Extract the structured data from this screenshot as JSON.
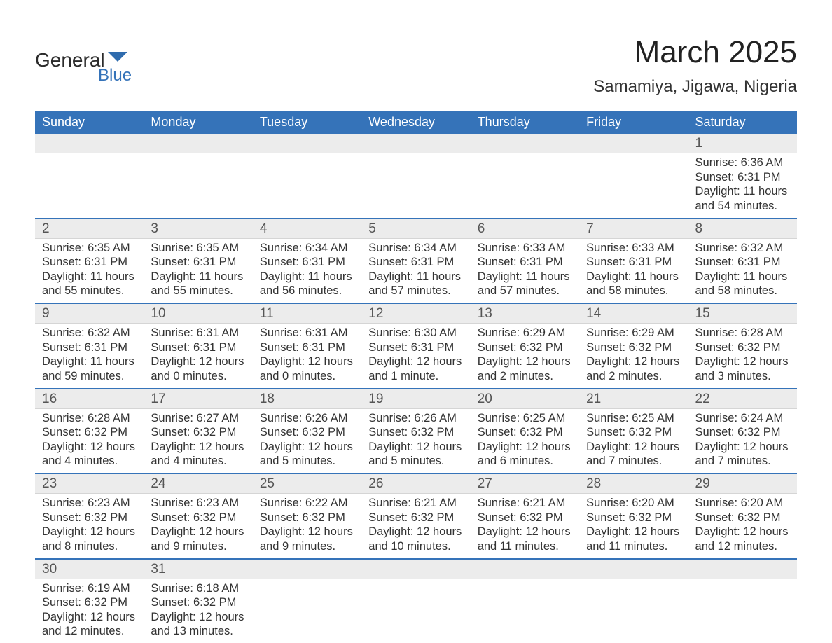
{
  "brand": {
    "line1": "General",
    "line2": "Blue",
    "flag_color": "#2f6cae"
  },
  "header": {
    "month_title": "March 2025",
    "location": "Samamiya, Jigawa, Nigeria"
  },
  "colors": {
    "header_bg": "#3573b9",
    "header_fg": "#ffffff",
    "row_divider": "#3573b9",
    "daynum_bg": "#ececec",
    "text": "#333333"
  },
  "typography": {
    "title_fontsize": 44,
    "location_fontsize": 24,
    "dayheader_fontsize": 18,
    "body_fontsize": 16.5
  },
  "calendar": {
    "type": "table",
    "day_headers": [
      "Sunday",
      "Monday",
      "Tuesday",
      "Wednesday",
      "Thursday",
      "Friday",
      "Saturday"
    ],
    "weeks": [
      [
        null,
        null,
        null,
        null,
        null,
        null,
        {
          "n": "1",
          "sunrise": "Sunrise: 6:36 AM",
          "sunset": "Sunset: 6:31 PM",
          "daylight": "Daylight: 11 hours and 54 minutes."
        }
      ],
      [
        {
          "n": "2",
          "sunrise": "Sunrise: 6:35 AM",
          "sunset": "Sunset: 6:31 PM",
          "daylight": "Daylight: 11 hours and 55 minutes."
        },
        {
          "n": "3",
          "sunrise": "Sunrise: 6:35 AM",
          "sunset": "Sunset: 6:31 PM",
          "daylight": "Daylight: 11 hours and 55 minutes."
        },
        {
          "n": "4",
          "sunrise": "Sunrise: 6:34 AM",
          "sunset": "Sunset: 6:31 PM",
          "daylight": "Daylight: 11 hours and 56 minutes."
        },
        {
          "n": "5",
          "sunrise": "Sunrise: 6:34 AM",
          "sunset": "Sunset: 6:31 PM",
          "daylight": "Daylight: 11 hours and 57 minutes."
        },
        {
          "n": "6",
          "sunrise": "Sunrise: 6:33 AM",
          "sunset": "Sunset: 6:31 PM",
          "daylight": "Daylight: 11 hours and 57 minutes."
        },
        {
          "n": "7",
          "sunrise": "Sunrise: 6:33 AM",
          "sunset": "Sunset: 6:31 PM",
          "daylight": "Daylight: 11 hours and 58 minutes."
        },
        {
          "n": "8",
          "sunrise": "Sunrise: 6:32 AM",
          "sunset": "Sunset: 6:31 PM",
          "daylight": "Daylight: 11 hours and 58 minutes."
        }
      ],
      [
        {
          "n": "9",
          "sunrise": "Sunrise: 6:32 AM",
          "sunset": "Sunset: 6:31 PM",
          "daylight": "Daylight: 11 hours and 59 minutes."
        },
        {
          "n": "10",
          "sunrise": "Sunrise: 6:31 AM",
          "sunset": "Sunset: 6:31 PM",
          "daylight": "Daylight: 12 hours and 0 minutes."
        },
        {
          "n": "11",
          "sunrise": "Sunrise: 6:31 AM",
          "sunset": "Sunset: 6:31 PM",
          "daylight": "Daylight: 12 hours and 0 minutes."
        },
        {
          "n": "12",
          "sunrise": "Sunrise: 6:30 AM",
          "sunset": "Sunset: 6:31 PM",
          "daylight": "Daylight: 12 hours and 1 minute."
        },
        {
          "n": "13",
          "sunrise": "Sunrise: 6:29 AM",
          "sunset": "Sunset: 6:32 PM",
          "daylight": "Daylight: 12 hours and 2 minutes."
        },
        {
          "n": "14",
          "sunrise": "Sunrise: 6:29 AM",
          "sunset": "Sunset: 6:32 PM",
          "daylight": "Daylight: 12 hours and 2 minutes."
        },
        {
          "n": "15",
          "sunrise": "Sunrise: 6:28 AM",
          "sunset": "Sunset: 6:32 PM",
          "daylight": "Daylight: 12 hours and 3 minutes."
        }
      ],
      [
        {
          "n": "16",
          "sunrise": "Sunrise: 6:28 AM",
          "sunset": "Sunset: 6:32 PM",
          "daylight": "Daylight: 12 hours and 4 minutes."
        },
        {
          "n": "17",
          "sunrise": "Sunrise: 6:27 AM",
          "sunset": "Sunset: 6:32 PM",
          "daylight": "Daylight: 12 hours and 4 minutes."
        },
        {
          "n": "18",
          "sunrise": "Sunrise: 6:26 AM",
          "sunset": "Sunset: 6:32 PM",
          "daylight": "Daylight: 12 hours and 5 minutes."
        },
        {
          "n": "19",
          "sunrise": "Sunrise: 6:26 AM",
          "sunset": "Sunset: 6:32 PM",
          "daylight": "Daylight: 12 hours and 5 minutes."
        },
        {
          "n": "20",
          "sunrise": "Sunrise: 6:25 AM",
          "sunset": "Sunset: 6:32 PM",
          "daylight": "Daylight: 12 hours and 6 minutes."
        },
        {
          "n": "21",
          "sunrise": "Sunrise: 6:25 AM",
          "sunset": "Sunset: 6:32 PM",
          "daylight": "Daylight: 12 hours and 7 minutes."
        },
        {
          "n": "22",
          "sunrise": "Sunrise: 6:24 AM",
          "sunset": "Sunset: 6:32 PM",
          "daylight": "Daylight: 12 hours and 7 minutes."
        }
      ],
      [
        {
          "n": "23",
          "sunrise": "Sunrise: 6:23 AM",
          "sunset": "Sunset: 6:32 PM",
          "daylight": "Daylight: 12 hours and 8 minutes."
        },
        {
          "n": "24",
          "sunrise": "Sunrise: 6:23 AM",
          "sunset": "Sunset: 6:32 PM",
          "daylight": "Daylight: 12 hours and 9 minutes."
        },
        {
          "n": "25",
          "sunrise": "Sunrise: 6:22 AM",
          "sunset": "Sunset: 6:32 PM",
          "daylight": "Daylight: 12 hours and 9 minutes."
        },
        {
          "n": "26",
          "sunrise": "Sunrise: 6:21 AM",
          "sunset": "Sunset: 6:32 PM",
          "daylight": "Daylight: 12 hours and 10 minutes."
        },
        {
          "n": "27",
          "sunrise": "Sunrise: 6:21 AM",
          "sunset": "Sunset: 6:32 PM",
          "daylight": "Daylight: 12 hours and 11 minutes."
        },
        {
          "n": "28",
          "sunrise": "Sunrise: 6:20 AM",
          "sunset": "Sunset: 6:32 PM",
          "daylight": "Daylight: 12 hours and 11 minutes."
        },
        {
          "n": "29",
          "sunrise": "Sunrise: 6:20 AM",
          "sunset": "Sunset: 6:32 PM",
          "daylight": "Daylight: 12 hours and 12 minutes."
        }
      ],
      [
        {
          "n": "30",
          "sunrise": "Sunrise: 6:19 AM",
          "sunset": "Sunset: 6:32 PM",
          "daylight": "Daylight: 12 hours and 12 minutes."
        },
        {
          "n": "31",
          "sunrise": "Sunrise: 6:18 AM",
          "sunset": "Sunset: 6:32 PM",
          "daylight": "Daylight: 12 hours and 13 minutes."
        },
        null,
        null,
        null,
        null,
        null
      ]
    ]
  }
}
